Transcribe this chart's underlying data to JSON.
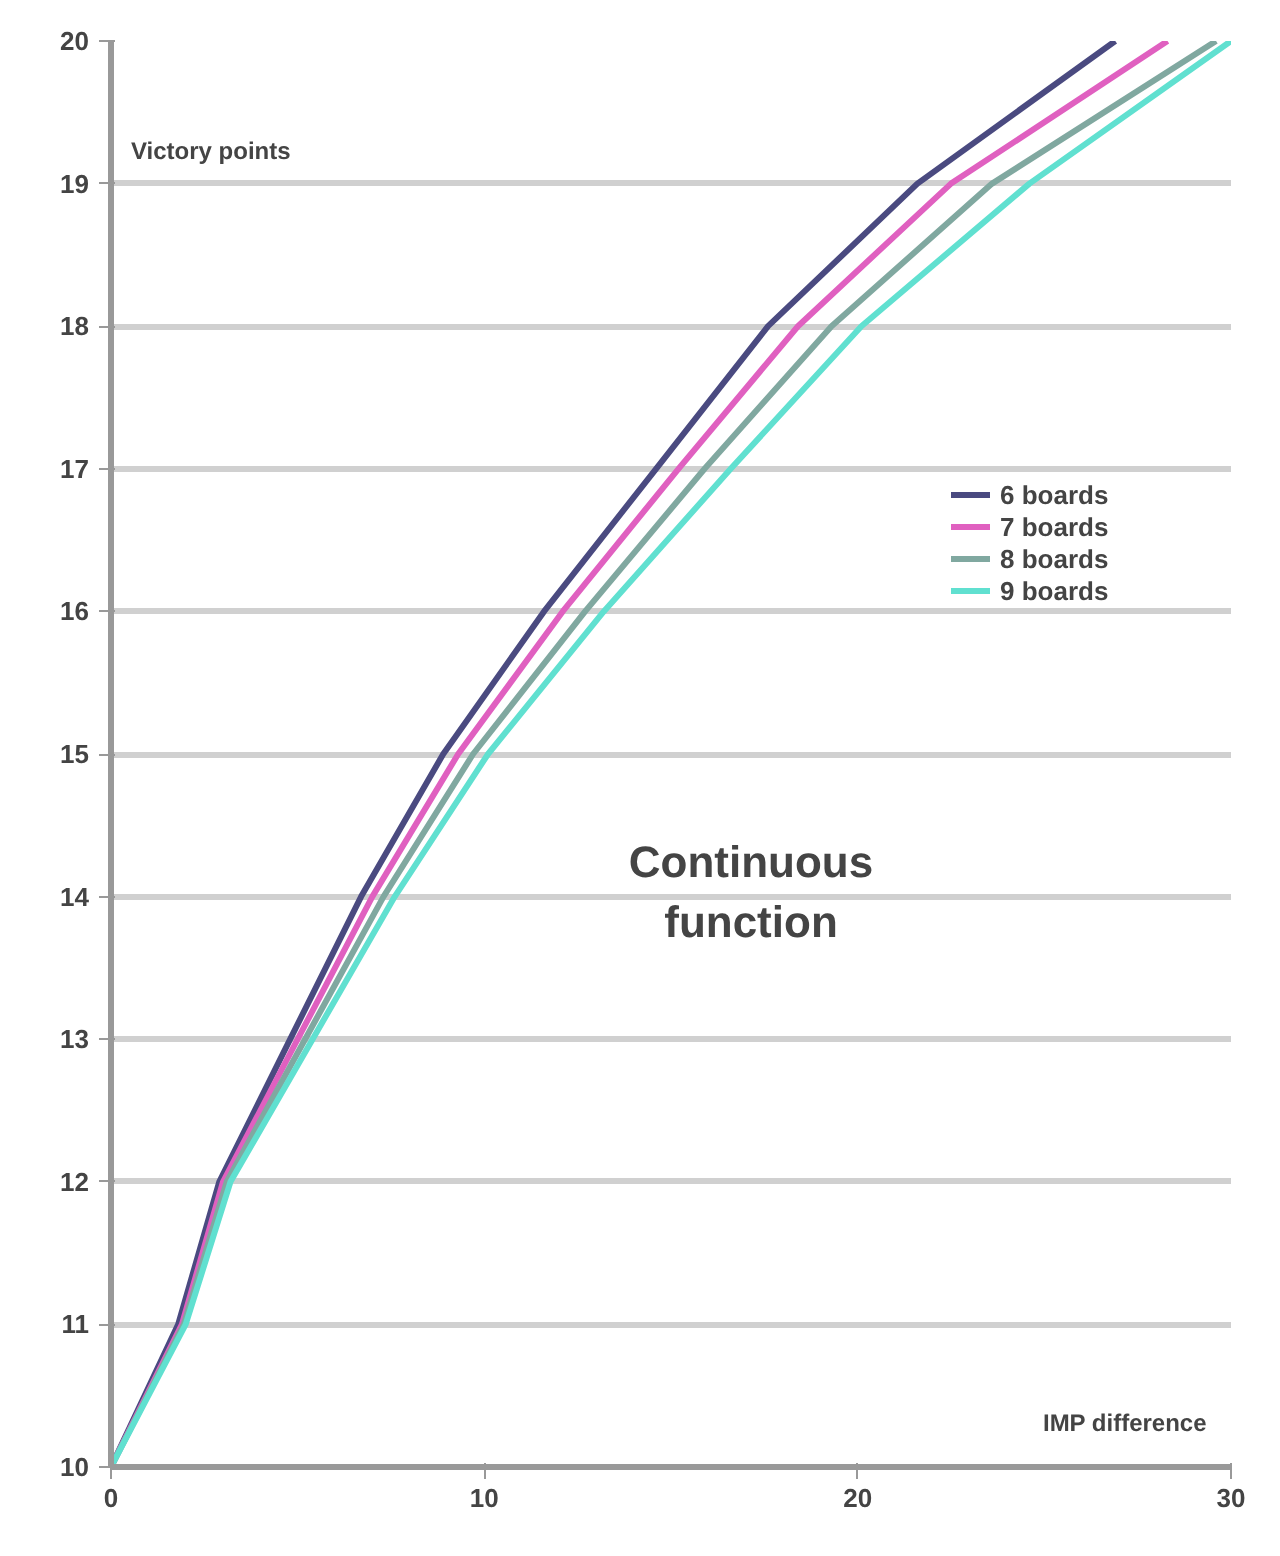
{
  "chart_data": {
    "type": "line",
    "xlabel": "IMP difference",
    "ylabel": "Victory points",
    "annotations": [
      "Continuous function"
    ],
    "xlim": [
      0,
      30
    ],
    "xticks": [
      0,
      10,
      20,
      30
    ],
    "ylim": [
      10,
      20
    ],
    "yticks": [
      10,
      11,
      12,
      13,
      14,
      15,
      16,
      17,
      18,
      19,
      20
    ],
    "grid": "y",
    "legend": "right",
    "line_style": "solid",
    "series": [
      {
        "name": "6 boards",
        "color": "#4a4a80",
        "x": [
          0,
          1.8,
          2.9,
          4.8,
          6.7,
          8.9,
          11.6,
          14.6,
          17.6,
          21.6,
          26.9
        ],
        "values": [
          10,
          11,
          12,
          13,
          14,
          15,
          16,
          17,
          18,
          19,
          20
        ]
      },
      {
        "name": "7 boards",
        "color": "#e060c0",
        "x": [
          0,
          1.9,
          3.0,
          5.0,
          7.0,
          9.3,
          12.1,
          15.2,
          18.4,
          22.5,
          28.3
        ],
        "values": [
          10,
          11,
          12,
          13,
          14,
          15,
          16,
          17,
          18,
          19,
          20
        ]
      },
      {
        "name": "8 boards",
        "color": "#80a8a0",
        "x": [
          0,
          1.95,
          3.1,
          5.2,
          7.3,
          9.7,
          12.7,
          15.9,
          19.3,
          23.6,
          29.6
        ],
        "values": [
          10,
          11,
          12,
          13,
          14,
          15,
          16,
          17,
          18,
          19,
          20
        ]
      },
      {
        "name": "9 boards",
        "color": "#60e0d0",
        "x": [
          0,
          2.0,
          3.2,
          5.4,
          7.6,
          10.1,
          13.2,
          16.6,
          20.1,
          24.6,
          30
        ],
        "values": [
          10,
          11,
          12,
          13,
          14,
          15,
          16,
          17,
          18,
          19,
          20
        ]
      }
    ]
  }
}
